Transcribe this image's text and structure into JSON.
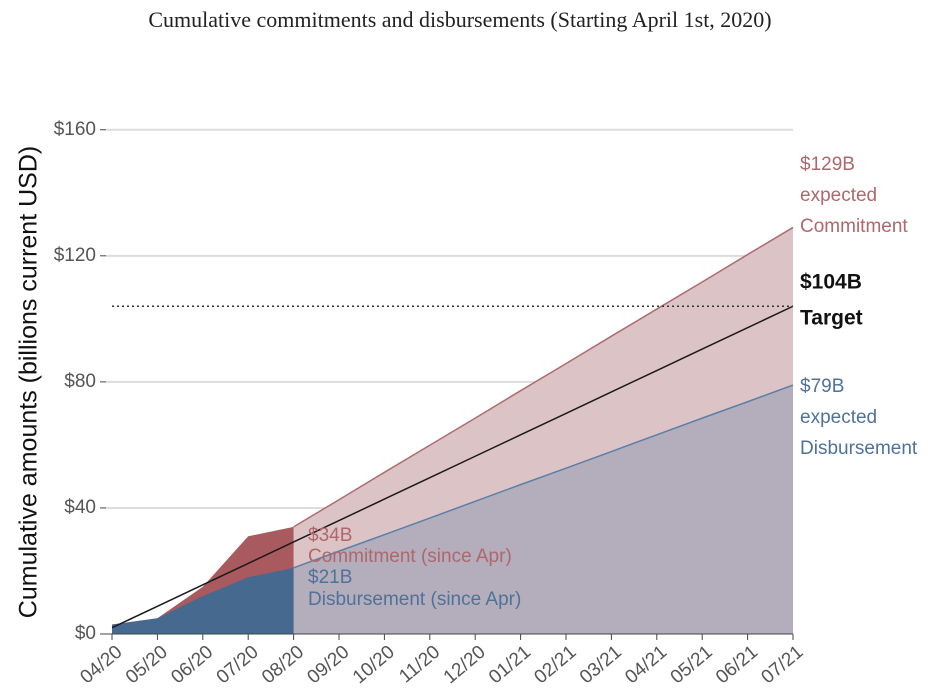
{
  "chart_data": {
    "type": "area",
    "title": "Cumulative commitments and disbursements (Starting April 1st, 2020)",
    "y_label": "Cumulative amounts (billions current USD)",
    "categories": [
      "04/20",
      "05/20",
      "06/20",
      "07/20",
      "08/20",
      "09/20",
      "10/20",
      "11/20",
      "12/20",
      "01/21",
      "02/21",
      "03/21",
      "04/21",
      "05/21",
      "06/21",
      "07/21"
    ],
    "ylim": [
      0,
      165
    ],
    "yticks": [
      {
        "value": 0,
        "label": "$0"
      },
      {
        "value": 40,
        "label": "$40"
      },
      {
        "value": 80,
        "label": "$80"
      },
      {
        "value": 120,
        "label": "$120"
      },
      {
        "value": 160,
        "label": "$160"
      }
    ],
    "grid": true,
    "series": [
      {
        "kind": "area",
        "color": "#dcc4c6",
        "line_color": "#b06b6f",
        "values": [
          null,
          null,
          null,
          null,
          34,
          42.6,
          51.3,
          59.9,
          68.5,
          77.2,
          85.8,
          94.5,
          103.1,
          111.7,
          120.4,
          129
        ]
      },
      {
        "kind": "area",
        "color": "#b3adbc",
        "line_color": "#5a80a8",
        "values": [
          null,
          null,
          null,
          null,
          21,
          26.3,
          31.5,
          36.8,
          42.1,
          47.4,
          52.6,
          57.9,
          63.2,
          68.5,
          73.7,
          79
        ]
      },
      {
        "kind": "area",
        "color": "#a85a5f",
        "values": [
          3,
          5,
          15,
          31,
          34,
          null,
          null,
          null,
          null,
          null,
          null,
          null,
          null,
          null,
          null,
          null
        ]
      },
      {
        "kind": "area",
        "color": "#45698f",
        "values": [
          3,
          5,
          12,
          18,
          21,
          null,
          null,
          null,
          null,
          null,
          null,
          null,
          null,
          null,
          null,
          null
        ]
      },
      {
        "kind": "line",
        "color": "#1a1a1a",
        "values": [
          2,
          8.8,
          15.6,
          22.4,
          29.2,
          36,
          42.8,
          49.6,
          56.4,
          63.2,
          70,
          76.8,
          83.6,
          90.4,
          97.2,
          104
        ]
      }
    ],
    "reference_line": {
      "value": 104,
      "style": "dotted",
      "color": "#333333"
    },
    "annotations": [
      {
        "text": [
          "$129B",
          "expected",
          "Commitment"
        ],
        "color": "#b0676b",
        "bold": false
      },
      {
        "text": [
          "$104B",
          "Target"
        ],
        "color": "#111111",
        "bold": true
      },
      {
        "text": [
          "$79B",
          "expected",
          "Disbursement"
        ],
        "color": "#4f7299",
        "bold": false
      },
      {
        "text": [
          "$34B",
          "Commitment (since Apr)"
        ],
        "color": "#b0676b",
        "bold": false
      },
      {
        "text": [
          "$21B",
          "Disbursement (since Apr)"
        ],
        "color": "#4f7299",
        "bold": false
      }
    ]
  }
}
